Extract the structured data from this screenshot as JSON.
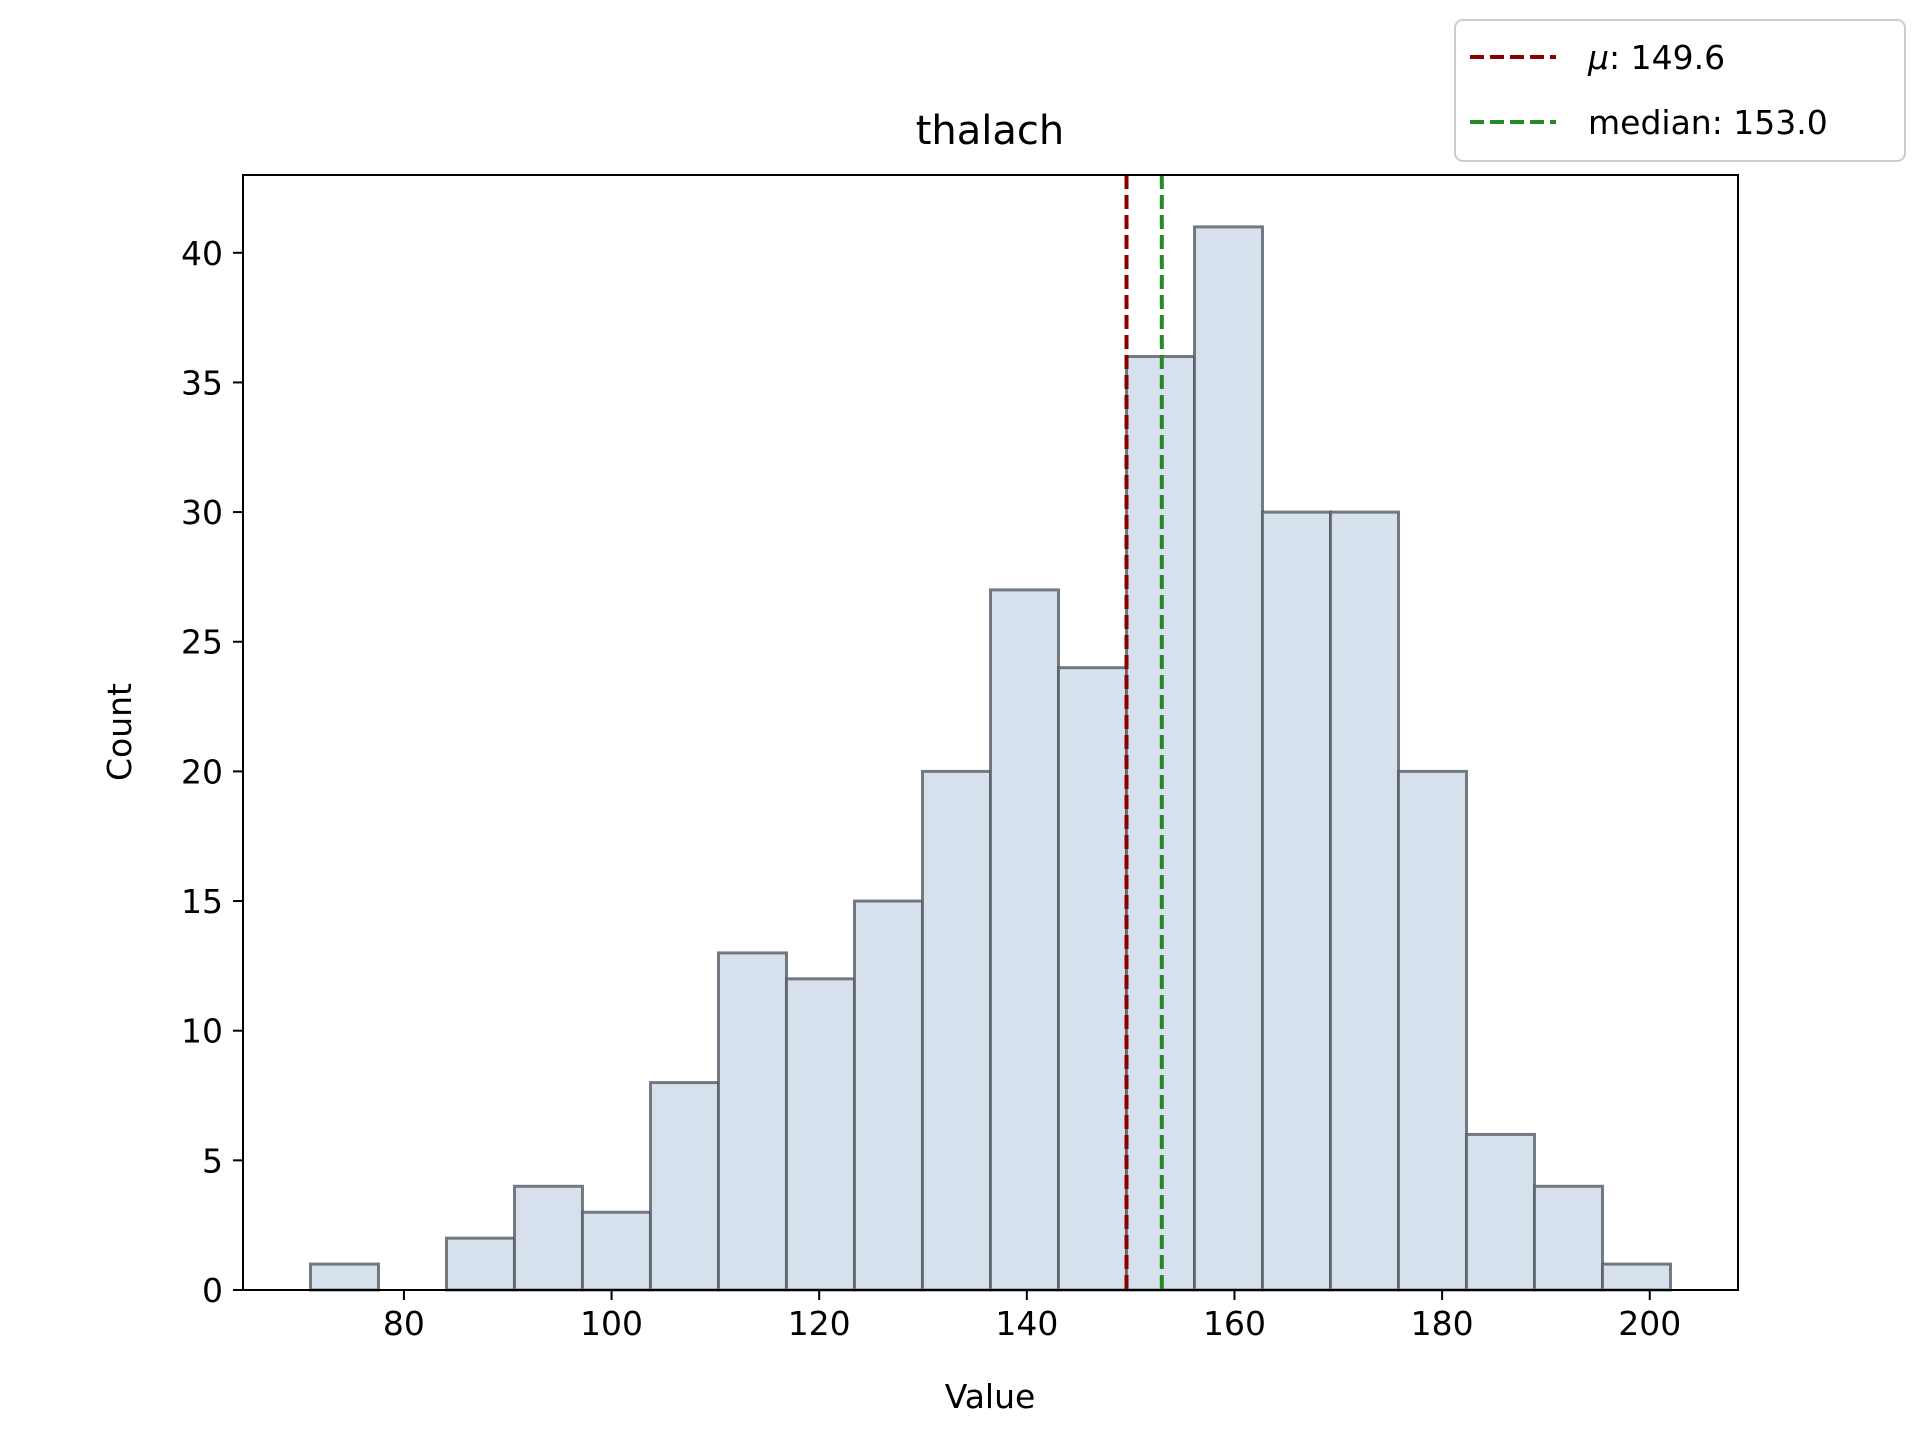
{
  "chart_data": {
    "type": "bar",
    "subtype": "histogram",
    "title": "thalach",
    "xlabel": "Value",
    "ylabel": "Count",
    "xlim": [
      64.5,
      208.5
    ],
    "ylim": [
      0,
      43
    ],
    "xticks": [
      80,
      100,
      120,
      140,
      160,
      180,
      200
    ],
    "yticks": [
      0,
      5,
      10,
      15,
      20,
      25,
      30,
      35,
      40
    ],
    "bin_start": 71,
    "bin_width": 6.55,
    "counts": [
      1,
      0,
      2,
      4,
      3,
      8,
      13,
      12,
      15,
      20,
      27,
      24,
      36,
      41,
      30,
      30,
      20,
      6,
      4,
      1
    ],
    "bar_fill": "#d7e1ed",
    "bar_edge": "#545b63",
    "grid": false,
    "legend_position": "top-right",
    "lines": [
      {
        "label": "μ: 149.6",
        "label_symbol": "μ",
        "label_rest": ": 149.6",
        "value": 149.6,
        "color": "#8b0000",
        "style": "dashed"
      },
      {
        "label": "median: 153.0",
        "value": 153.0,
        "color": "#228b22",
        "style": "dashed"
      }
    ]
  }
}
